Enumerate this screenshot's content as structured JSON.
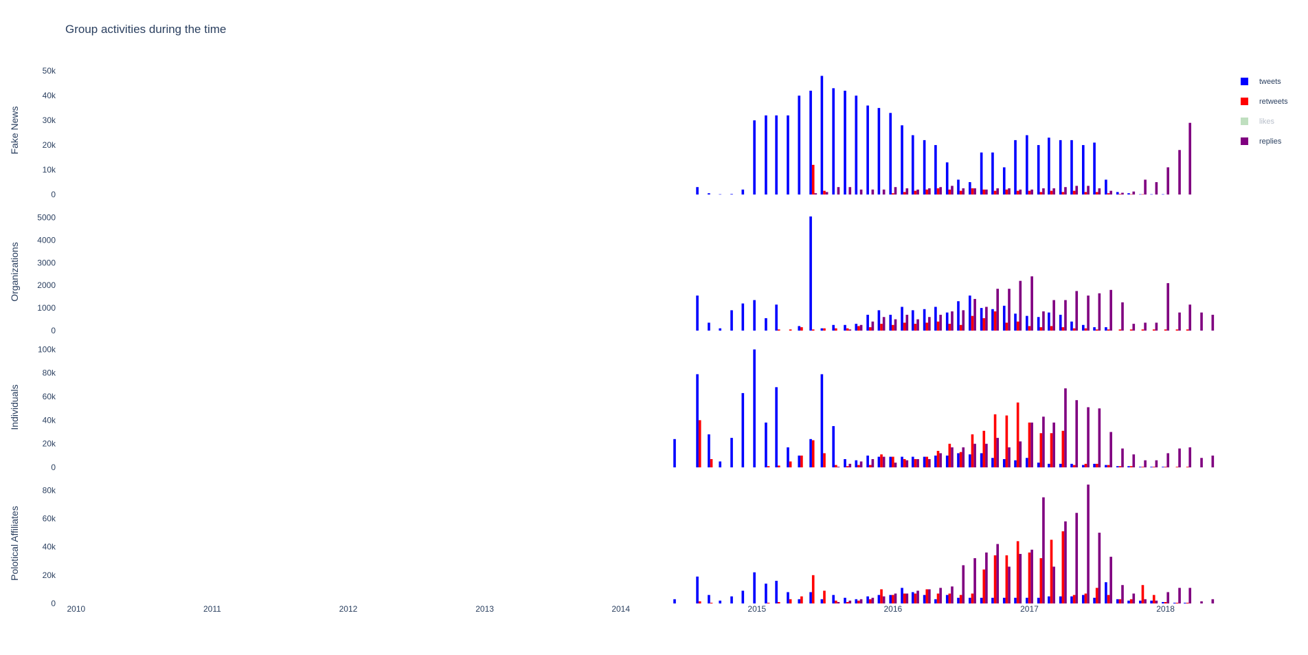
{
  "chart_data": {
    "type": "bar",
    "title": "Group activities during the time",
    "legend_position": "top-right",
    "grid": false,
    "x": [
      "2014-06",
      "2014-08",
      "2014-09",
      "2014-10",
      "2014-11",
      "2014-12",
      "2015-01",
      "2015-02",
      "2015-03",
      "2015-04",
      "2015-05",
      "2015-06",
      "2015-07",
      "2015-08",
      "2015-09",
      "2015-10",
      "2015-11",
      "2015-12",
      "2016-01",
      "2016-02",
      "2016-03",
      "2016-04",
      "2016-05",
      "2016-06",
      "2016-07",
      "2016-08",
      "2016-09",
      "2016-10",
      "2016-11",
      "2016-12",
      "2017-01",
      "2017-02",
      "2017-03",
      "2017-04",
      "2017-05",
      "2017-06",
      "2017-07",
      "2017-08",
      "2017-09",
      "2017-10",
      "2017-11",
      "2017-12",
      "2018-01",
      "2018-02",
      "2018-03",
      "2018-04",
      "2018-05"
    ],
    "x_axis": {
      "ticks": [
        "2010",
        "2011",
        "2012",
        "2013",
        "2014",
        "2015",
        "2016",
        "2017",
        "2018"
      ],
      "range": [
        "2009-12-01",
        "2018-05-20"
      ]
    },
    "series_styles": [
      {
        "name": "tweets",
        "color": "#0000ff",
        "visible": true
      },
      {
        "name": "retweets",
        "color": "#ff0000",
        "visible": true
      },
      {
        "name": "likes",
        "color": "#7fbf7f",
        "visible": false
      },
      {
        "name": "replies",
        "color": "#800080",
        "visible": true
      }
    ],
    "subplots": [
      {
        "ylabel": "Fake News",
        "ylim": [
          0,
          52000
        ],
        "yticks": [
          0,
          10000,
          20000,
          30000,
          40000,
          50000
        ],
        "ytick_labels": [
          "0",
          "10k",
          "20k",
          "30k",
          "40k",
          "50k"
        ],
        "series": [
          {
            "name": "tweets",
            "values": [
              0,
              3000,
              500,
              100,
              200,
              2000,
              30000,
              32000,
              32000,
              32000,
              40000,
              42000,
              48000,
              43000,
              42000,
              40000,
              36000,
              35000,
              33000,
              28000,
              24000,
              22000,
              20000,
              13000,
              6000,
              5000,
              17000,
              17000,
              11000,
              22000,
              24000,
              20000,
              23000,
              22000,
              22000,
              20000,
              21000,
              6000,
              1000,
              500,
              100,
              100,
              100,
              0,
              0,
              0,
              0
            ]
          },
          {
            "name": "retweets",
            "values": [
              0,
              0,
              0,
              0,
              0,
              0,
              0,
              0,
              0,
              0,
              0,
              12000,
              1500,
              0,
              0,
              0,
              0,
              0,
              500,
              1000,
              1500,
              2000,
              2500,
              2000,
              1500,
              2500,
              2000,
              1500,
              2000,
              1500,
              1500,
              1000,
              1500,
              1000,
              1500,
              1000,
              1000,
              500,
              200,
              100,
              100,
              0,
              0,
              0,
              0,
              0,
              0
            ]
          },
          {
            "name": "replies",
            "values": [
              0,
              0,
              0,
              0,
              0,
              0,
              0,
              0,
              0,
              0,
              0,
              500,
              1000,
              3000,
              3000,
              2000,
              2000,
              2000,
              3000,
              2500,
              2000,
              2500,
              3000,
              3500,
              2500,
              2500,
              2000,
              2500,
              2500,
              2000,
              2000,
              2500,
              2500,
              3000,
              3500,
              3500,
              2500,
              1500,
              700,
              1200,
              6000,
              5000,
              11000,
              18000,
              29000,
              0,
              0
            ]
          }
        ]
      },
      {
        "ylabel": "Organizations",
        "ylim": [
          0,
          5200
        ],
        "yticks": [
          0,
          1000,
          2000,
          3000,
          4000,
          5000
        ],
        "ytick_labels": [
          "0",
          "1000",
          "2000",
          "3000",
          "4000",
          "5000"
        ],
        "series": [
          {
            "name": "tweets",
            "values": [
              0,
              1550,
              350,
              100,
              900,
              1200,
              1350,
              550,
              1150,
              0,
              200,
              5050,
              100,
              250,
              250,
              300,
              700,
              900,
              700,
              1050,
              900,
              950,
              1050,
              800,
              1300,
              1550,
              1000,
              950,
              1100,
              750,
              650,
              600,
              800,
              700,
              400,
              250,
              150,
              150,
              0,
              0,
              0,
              0,
              0,
              0,
              0,
              0,
              0
            ]
          },
          {
            "name": "retweets",
            "values": [
              0,
              0,
              0,
              0,
              0,
              0,
              0,
              0,
              50,
              50,
              150,
              50,
              100,
              100,
              100,
              200,
              150,
              300,
              250,
              350,
              300,
              350,
              400,
              300,
              250,
              650,
              550,
              850,
              350,
              400,
              200,
              150,
              200,
              150,
              100,
              100,
              50,
              50,
              50,
              50,
              50,
              50,
              50,
              50,
              50,
              0,
              0
            ]
          },
          {
            "name": "replies",
            "values": [
              0,
              0,
              0,
              0,
              0,
              0,
              0,
              0,
              0,
              0,
              0,
              0,
              0,
              0,
              50,
              250,
              400,
              600,
              500,
              700,
              500,
              600,
              700,
              850,
              900,
              1400,
              1050,
              1850,
              1850,
              2200,
              2400,
              850,
              1350,
              1350,
              1750,
              1550,
              1650,
              1800,
              1250,
              300,
              350,
              350,
              2100,
              800,
              1150,
              800,
              700
            ]
          }
        ]
      },
      {
        "ylabel": "Individuals",
        "ylim": [
          0,
          102000
        ],
        "yticks": [
          0,
          20000,
          40000,
          60000,
          80000,
          100000
        ],
        "ytick_labels": [
          "0",
          "20k",
          "40k",
          "60k",
          "80k",
          "100k"
        ],
        "series": [
          {
            "name": "tweets",
            "values": [
              24000,
              79000,
              28000,
              5000,
              25000,
              63000,
              100000,
              38000,
              68000,
              17000,
              10000,
              24000,
              79000,
              35000,
              7000,
              6000,
              10000,
              9000,
              9000,
              9000,
              9000,
              9000,
              10000,
              10000,
              12000,
              11000,
              12000,
              8000,
              7000,
              6000,
              8000,
              4000,
              3000,
              3000,
              3000,
              2000,
              3000,
              2000,
              1000,
              1000,
              500,
              500,
              500,
              0,
              0,
              0,
              0
            ]
          },
          {
            "name": "retweets",
            "values": [
              0,
              40000,
              7000,
              0,
              0,
              0,
              0,
              1000,
              1500,
              5000,
              10000,
              23000,
              12000,
              2000,
              1000,
              2000,
              2000,
              11000,
              9000,
              7000,
              7000,
              9000,
              14000,
              20000,
              13000,
              28000,
              31000,
              45000,
              44000,
              55000,
              38000,
              29000,
              29000,
              31000,
              2000,
              3000,
              3000,
              2000,
              1000,
              1000,
              500,
              500,
              500,
              500,
              500,
              0,
              0
            ]
          },
          {
            "name": "replies",
            "values": [
              0,
              0,
              0,
              0,
              0,
              0,
              0,
              0,
              0,
              0,
              0,
              0,
              0,
              500,
              3000,
              5000,
              7000,
              9000,
              4000,
              6000,
              7000,
              7000,
              12000,
              17000,
              17000,
              20000,
              20000,
              25000,
              17000,
              22000,
              38000,
              43000,
              38000,
              67000,
              57000,
              51000,
              50000,
              30000,
              16000,
              11000,
              6000,
              6000,
              12000,
              16000,
              17000,
              8000,
              10000
            ]
          }
        ]
      },
      {
        "ylabel": "Polotical Affiliates",
        "ylim": [
          0,
          85000
        ],
        "yticks": [
          0,
          20000,
          40000,
          60000,
          80000
        ],
        "ytick_labels": [
          "0",
          "20k",
          "40k",
          "60k",
          "80k"
        ],
        "series": [
          {
            "name": "tweets",
            "values": [
              3000,
              19000,
              6000,
              2000,
              5000,
              9000,
              22000,
              14000,
              16000,
              8000,
              3000,
              8000,
              3000,
              6000,
              4000,
              3000,
              5000,
              6000,
              6000,
              11000,
              8000,
              6000,
              3000,
              6000,
              4000,
              4000,
              4000,
              4000,
              4000,
              4000,
              4000,
              4000,
              5000,
              5000,
              5000,
              6000,
              4000,
              15000,
              3000,
              2000,
              2000,
              2000,
              1000,
              500,
              500,
              0,
              0
            ]
          },
          {
            "name": "retweets",
            "values": [
              0,
              1500,
              500,
              0,
              0,
              0,
              0,
              500,
              1000,
              3000,
              5000,
              20000,
              9000,
              2000,
              1000,
              2000,
              3000,
              10000,
              6000,
              7000,
              7000,
              10000,
              7000,
              7000,
              6000,
              7000,
              24000,
              34000,
              34000,
              44000,
              36000,
              32000,
              45000,
              51000,
              6000,
              7000,
              11000,
              6000,
              3000,
              3000,
              13000,
              6000,
              1000,
              500,
              500,
              0,
              0
            ]
          },
          {
            "name": "replies",
            "values": [
              0,
              0,
              0,
              0,
              0,
              0,
              0,
              0,
              0,
              0,
              0,
              0,
              0,
              1000,
              2000,
              3000,
              4000,
              5000,
              7000,
              7000,
              9000,
              10000,
              11000,
              12000,
              27000,
              32000,
              36000,
              42000,
              26000,
              35000,
              38000,
              75000,
              26000,
              58000,
              64000,
              84000,
              50000,
              33000,
              13000,
              7000,
              3000,
              2000,
              8000,
              11000,
              11000,
              1500,
              3000
            ]
          }
        ]
      }
    ]
  }
}
